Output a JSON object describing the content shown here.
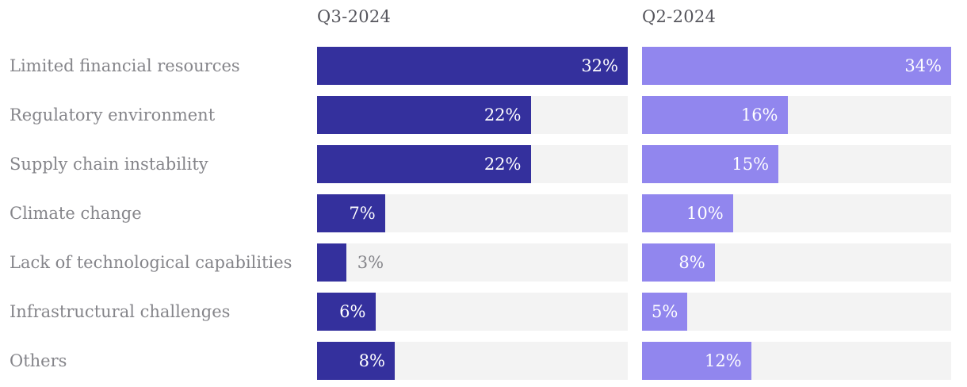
{
  "chart_data": {
    "type": "bar",
    "orientation": "horizontal",
    "layout": "two side-by-side columns of horizontal bars; each column's bars are scaled relative to that column's maximum value; light gray full-width tracks behind bars; value labels right-aligned inside bars in white, placed outside in gray when the bar is too narrow",
    "categories": [
      "Limited financial resources",
      "Regulatory environment",
      "Supply chain instability",
      "Climate change",
      "Lack of technological capabilities",
      "Infrastructural challenges",
      "Others"
    ],
    "series": [
      {
        "name": "Q3-2024",
        "values": [
          32,
          22,
          22,
          7,
          3,
          6,
          8
        ],
        "color": "#34309d"
      },
      {
        "name": "Q2-2024",
        "values": [
          34,
          16,
          15,
          10,
          8,
          5,
          12
        ],
        "color": "#9186ee"
      }
    ],
    "value_suffix": "%",
    "title": "",
    "xlabel": "",
    "ylabel": "",
    "legend_position": "column headers above each bar group",
    "grid": false,
    "colors": {
      "track": "#f3f3f3",
      "category_label": "#85858a",
      "column_header": "#55555c",
      "value_inside": "#ffffff",
      "value_outside": "#85858a",
      "background": "#ffffff"
    }
  }
}
